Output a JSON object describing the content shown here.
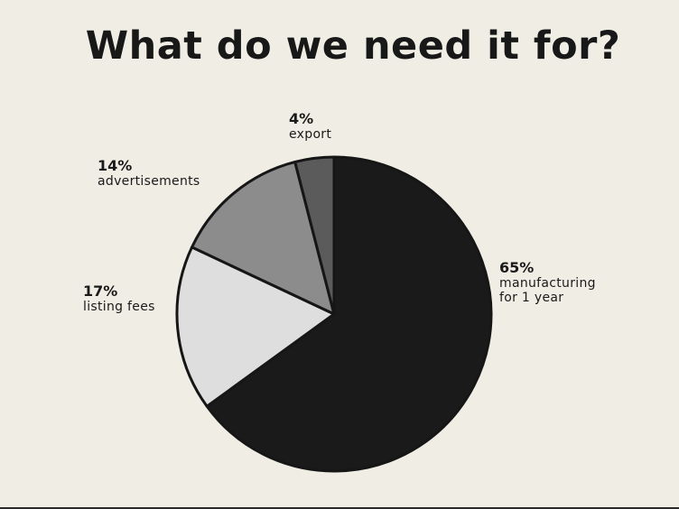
{
  "chart_data": {
    "type": "pie",
    "title": "What do we need it for?",
    "slices": [
      {
        "percent_label": "65%",
        "value": 65,
        "label": "manufacturing\nfor 1 year",
        "color": "#1b1a1a"
      },
      {
        "percent_label": "17%",
        "value": 17,
        "label": "listing fees",
        "color": "#dedede"
      },
      {
        "percent_label": "14%",
        "value": 14,
        "label": "advertisements",
        "color": "#8c8c8c"
      },
      {
        "percent_label": "4%",
        "value": 4,
        "label": "export",
        "color": "#5b5b5b"
      }
    ],
    "start": "12 o'clock",
    "direction": "clockwise",
    "outline_color": "#161616",
    "background_color": "#efede4"
  }
}
